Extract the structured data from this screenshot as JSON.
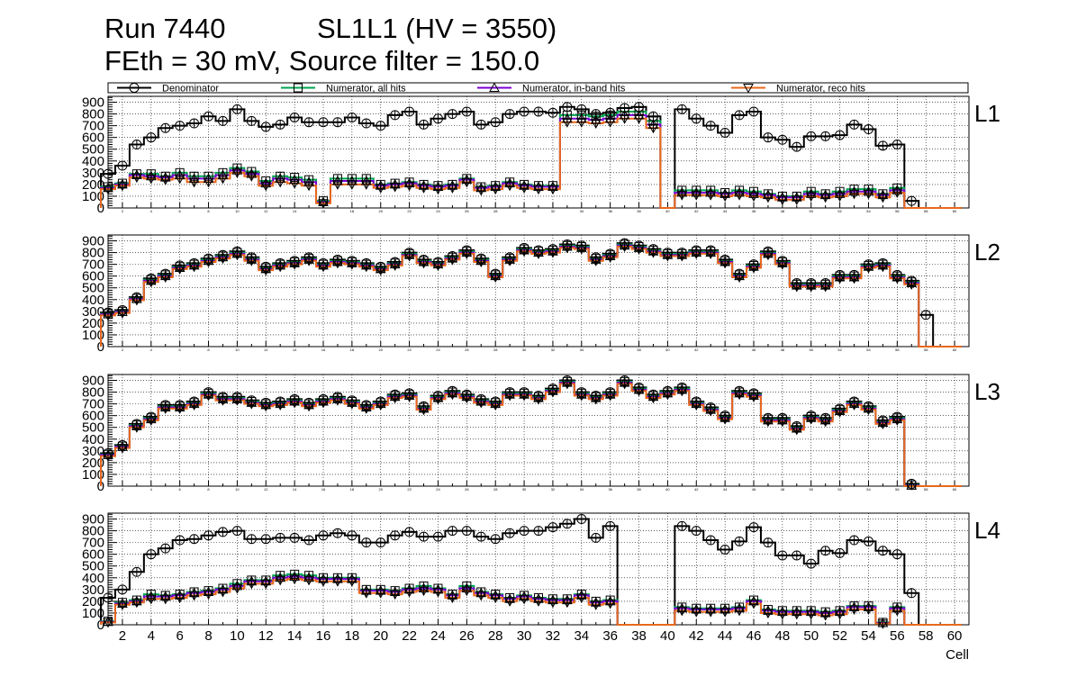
{
  "header": {
    "run": "Run 7440",
    "chamber": "SL1L1 (HV = 3550)",
    "settings": "FEth = 30 mV, Source filter = 150.0"
  },
  "chart_data": {
    "type": "line",
    "style": "step-histogram",
    "xlabel": "Cell",
    "xlim": [
      1,
      61
    ],
    "ylim": [
      0,
      950
    ],
    "x_ticks": [
      2,
      4,
      6,
      8,
      10,
      12,
      14,
      16,
      18,
      20,
      22,
      24,
      26,
      28,
      30,
      32,
      34,
      36,
      38,
      40,
      42,
      44,
      46,
      48,
      50,
      52,
      54,
      56,
      58,
      60
    ],
    "y_ticks": [
      0,
      100,
      200,
      300,
      400,
      500,
      600,
      700,
      800,
      900
    ],
    "legend": [
      {
        "name": "Denominator",
        "color": "#000000",
        "marker": "circle"
      },
      {
        "name": "Numerator, all hits",
        "color": "#00a651",
        "marker": "square"
      },
      {
        "name": "Numerator, in-band hits",
        "color": "#7b00d4",
        "marker": "triangle-up"
      },
      {
        "name": "Numerator, reco hits",
        "color": "#e8691c",
        "marker": "triangle-down"
      }
    ],
    "layers": [
      {
        "name": "L1",
        "x": [
          1,
          2,
          3,
          4,
          5,
          6,
          7,
          8,
          9,
          10,
          11,
          12,
          13,
          14,
          15,
          16,
          17,
          18,
          19,
          20,
          21,
          22,
          23,
          24,
          25,
          26,
          27,
          28,
          29,
          30,
          31,
          32,
          33,
          34,
          35,
          36,
          37,
          38,
          39,
          40,
          41,
          42,
          43,
          44,
          45,
          46,
          47,
          48,
          49,
          50,
          51,
          52,
          53,
          54,
          55,
          56,
          57,
          58,
          59,
          60
        ],
        "denominator": [
          290,
          360,
          540,
          600,
          680,
          700,
          720,
          780,
          740,
          840,
          740,
          690,
          710,
          770,
          730,
          730,
          730,
          770,
          720,
          700,
          790,
          820,
          710,
          760,
          800,
          820,
          710,
          730,
          800,
          820,
          820,
          810,
          860,
          840,
          800,
          810,
          850,
          860,
          780,
          0,
          840,
          760,
          700,
          640,
          790,
          820,
          600,
          580,
          520,
          610,
          610,
          620,
          710,
          670,
          530,
          540,
          60,
          0,
          0,
          0
        ],
        "all_hits": [
          180,
          210,
          290,
          290,
          270,
          300,
          270,
          270,
          300,
          340,
          310,
          230,
          270,
          260,
          240,
          60,
          250,
          250,
          250,
          200,
          210,
          220,
          200,
          190,
          200,
          250,
          180,
          190,
          220,
          200,
          190,
          190,
          790,
          790,
          780,
          790,
          820,
          820,
          740,
          0,
          150,
          150,
          150,
          130,
          150,
          140,
          120,
          100,
          100,
          140,
          120,
          140,
          160,
          160,
          120,
          170,
          0,
          0,
          0,
          0
        ],
        "inband_hits": [
          170,
          200,
          280,
          270,
          260,
          280,
          250,
          250,
          280,
          320,
          290,
          210,
          250,
          240,
          220,
          50,
          230,
          230,
          230,
          190,
          200,
          210,
          190,
          180,
          190,
          240,
          170,
          180,
          210,
          190,
          180,
          180,
          760,
          760,
          750,
          760,
          790,
          790,
          710,
          0,
          130,
          130,
          130,
          120,
          130,
          120,
          110,
          90,
          90,
          120,
          110,
          120,
          140,
          140,
          110,
          150,
          0,
          0,
          0,
          0
        ],
        "reco_hits": [
          160,
          190,
          260,
          250,
          240,
          250,
          220,
          220,
          250,
          300,
          270,
          190,
          220,
          210,
          190,
          40,
          200,
          200,
          200,
          170,
          180,
          190,
          170,
          160,
          170,
          220,
          150,
          160,
          190,
          170,
          160,
          160,
          730,
          730,
          720,
          730,
          760,
          760,
          680,
          0,
          110,
          110,
          110,
          100,
          110,
          100,
          90,
          70,
          70,
          100,
          90,
          100,
          120,
          120,
          90,
          130,
          0,
          0,
          0,
          0
        ]
      },
      {
        "name": "L2",
        "x": [
          1,
          2,
          3,
          4,
          5,
          6,
          7,
          8,
          9,
          10,
          11,
          12,
          13,
          14,
          15,
          16,
          17,
          18,
          19,
          20,
          21,
          22,
          23,
          24,
          25,
          26,
          27,
          28,
          29,
          30,
          31,
          32,
          33,
          34,
          35,
          36,
          37,
          38,
          39,
          40,
          41,
          42,
          43,
          44,
          45,
          46,
          47,
          48,
          49,
          50,
          51,
          52,
          53,
          54,
          55,
          56,
          57,
          58,
          59,
          60
        ],
        "denominator": [
          290,
          310,
          420,
          580,
          620,
          690,
          710,
          750,
          780,
          810,
          760,
          680,
          710,
          730,
          760,
          710,
          740,
          730,
          710,
          680,
          720,
          800,
          740,
          720,
          770,
          820,
          750,
          620,
          760,
          840,
          820,
          830,
          870,
          860,
          760,
          790,
          880,
          860,
          830,
          800,
          800,
          820,
          820,
          740,
          620,
          700,
          810,
          730,
          540,
          540,
          540,
          610,
          610,
          700,
          710,
          610,
          560,
          270,
          0,
          0
        ],
        "all_hits": [
          280,
          300,
          410,
          570,
          610,
          680,
          700,
          740,
          770,
          800,
          750,
          670,
          700,
          720,
          750,
          700,
          730,
          720,
          700,
          670,
          710,
          790,
          730,
          710,
          760,
          810,
          740,
          610,
          750,
          830,
          810,
          820,
          860,
          850,
          750,
          780,
          870,
          850,
          820,
          790,
          790,
          810,
          810,
          730,
          610,
          690,
          800,
          720,
          530,
          530,
          530,
          600,
          600,
          690,
          700,
          600,
          550,
          0,
          0,
          0
        ],
        "inband_hits": [
          275,
          295,
          405,
          560,
          600,
          670,
          690,
          730,
          760,
          790,
          740,
          660,
          690,
          710,
          740,
          690,
          720,
          710,
          690,
          660,
          700,
          780,
          720,
          700,
          750,
          800,
          730,
          600,
          740,
          820,
          800,
          810,
          850,
          840,
          740,
          770,
          860,
          840,
          810,
          780,
          780,
          800,
          800,
          720,
          600,
          680,
          790,
          710,
          520,
          520,
          520,
          590,
          590,
          680,
          690,
          590,
          540,
          0,
          0,
          0
        ],
        "reco_hits": [
          265,
          285,
          395,
          550,
          590,
          660,
          680,
          720,
          750,
          780,
          730,
          650,
          680,
          700,
          730,
          680,
          710,
          700,
          680,
          650,
          690,
          770,
          710,
          690,
          740,
          790,
          720,
          590,
          730,
          810,
          790,
          800,
          840,
          830,
          730,
          760,
          850,
          830,
          800,
          770,
          770,
          790,
          790,
          710,
          590,
          670,
          780,
          700,
          510,
          510,
          510,
          580,
          580,
          670,
          680,
          580,
          530,
          0,
          0,
          0
        ]
      },
      {
        "name": "L3",
        "x": [
          1,
          2,
          3,
          4,
          5,
          6,
          7,
          8,
          9,
          10,
          11,
          12,
          13,
          14,
          15,
          16,
          17,
          18,
          19,
          20,
          21,
          22,
          23,
          24,
          25,
          26,
          27,
          28,
          29,
          30,
          31,
          32,
          33,
          34,
          35,
          36,
          37,
          38,
          39,
          40,
          41,
          42,
          43,
          44,
          45,
          46,
          47,
          48,
          49,
          50,
          51,
          52,
          53,
          54,
          55,
          56,
          57,
          58,
          59,
          60
        ],
        "denominator": [
          280,
          350,
          530,
          590,
          690,
          690,
          720,
          800,
          760,
          760,
          730,
          710,
          720,
          740,
          710,
          740,
          760,
          730,
          690,
          720,
          780,
          790,
          680,
          770,
          810,
          780,
          740,
          720,
          800,
          800,
          770,
          830,
          900,
          800,
          770,
          800,
          900,
          840,
          780,
          810,
          840,
          720,
          670,
          600,
          810,
          790,
          580,
          580,
          510,
          600,
          580,
          660,
          720,
          680,
          560,
          590,
          20,
          0,
          0,
          0
        ],
        "all_hits": [
          270,
          340,
          520,
          580,
          680,
          680,
          710,
          790,
          750,
          750,
          720,
          700,
          710,
          730,
          700,
          730,
          750,
          720,
          680,
          710,
          770,
          780,
          670,
          760,
          800,
          770,
          730,
          710,
          790,
          790,
          760,
          820,
          890,
          790,
          760,
          790,
          890,
          830,
          770,
          800,
          830,
          710,
          660,
          590,
          800,
          780,
          570,
          570,
          500,
          590,
          570,
          650,
          710,
          670,
          550,
          580,
          10,
          0,
          0,
          0
        ],
        "inband_hits": [
          265,
          335,
          510,
          570,
          670,
          670,
          700,
          780,
          740,
          740,
          710,
          690,
          700,
          720,
          690,
          720,
          740,
          710,
          670,
          700,
          760,
          770,
          660,
          750,
          790,
          760,
          720,
          700,
          780,
          780,
          750,
          810,
          880,
          780,
          750,
          780,
          880,
          820,
          760,
          790,
          820,
          700,
          650,
          580,
          790,
          770,
          560,
          560,
          490,
          580,
          560,
          640,
          700,
          660,
          540,
          570,
          5,
          0,
          0,
          0
        ],
        "reco_hits": [
          255,
          325,
          500,
          560,
          660,
          660,
          690,
          770,
          730,
          730,
          700,
          680,
          690,
          710,
          680,
          710,
          730,
          700,
          660,
          690,
          750,
          760,
          650,
          740,
          780,
          750,
          710,
          690,
          770,
          770,
          740,
          800,
          870,
          770,
          740,
          770,
          870,
          810,
          750,
          780,
          810,
          690,
          640,
          570,
          780,
          760,
          550,
          550,
          480,
          570,
          550,
          630,
          690,
          650,
          530,
          560,
          0,
          0,
          0,
          0
        ]
      },
      {
        "name": "L4",
        "x": [
          1,
          2,
          3,
          4,
          5,
          6,
          7,
          8,
          9,
          10,
          11,
          12,
          13,
          14,
          15,
          16,
          17,
          18,
          19,
          20,
          21,
          22,
          23,
          24,
          25,
          26,
          27,
          28,
          29,
          30,
          31,
          32,
          33,
          34,
          35,
          36,
          37,
          38,
          39,
          40,
          41,
          42,
          43,
          44,
          45,
          46,
          47,
          48,
          49,
          50,
          51,
          52,
          53,
          54,
          55,
          56,
          57,
          58,
          59,
          60
        ],
        "denominator": [
          230,
          300,
          450,
          600,
          650,
          720,
          730,
          760,
          790,
          800,
          730,
          730,
          740,
          740,
          720,
          760,
          780,
          760,
          700,
          700,
          760,
          790,
          750,
          750,
          800,
          800,
          750,
          730,
          780,
          800,
          800,
          830,
          860,
          900,
          740,
          840,
          0,
          0,
          0,
          0,
          840,
          800,
          720,
          640,
          710,
          830,
          700,
          590,
          590,
          520,
          630,
          610,
          720,
          710,
          630,
          600,
          270,
          0,
          0,
          0
        ],
        "all_hits": [
          30,
          190,
          210,
          260,
          250,
          260,
          280,
          290,
          310,
          350,
          380,
          380,
          420,
          430,
          420,
          400,
          400,
          400,
          300,
          300,
          290,
          310,
          330,
          310,
          260,
          330,
          280,
          260,
          230,
          250,
          230,
          220,
          220,
          260,
          200,
          210,
          0,
          0,
          0,
          0,
          150,
          140,
          140,
          140,
          150,
          210,
          130,
          120,
          120,
          120,
          110,
          120,
          160,
          160,
          20,
          150,
          0,
          0,
          0,
          0
        ],
        "inband_hits": [
          25,
          180,
          200,
          240,
          240,
          250,
          270,
          280,
          300,
          330,
          370,
          370,
          400,
          410,
          400,
          390,
          390,
          390,
          290,
          290,
          280,
          300,
          310,
          300,
          250,
          310,
          270,
          250,
          220,
          240,
          220,
          210,
          210,
          250,
          190,
          200,
          0,
          0,
          0,
          0,
          140,
          130,
          130,
          130,
          140,
          200,
          120,
          110,
          110,
          110,
          100,
          110,
          150,
          150,
          15,
          140,
          0,
          0,
          0,
          0
        ],
        "reco_hits": [
          20,
          170,
          190,
          220,
          220,
          230,
          250,
          260,
          280,
          310,
          350,
          350,
          380,
          390,
          380,
          370,
          370,
          370,
          270,
          270,
          260,
          280,
          290,
          280,
          230,
          290,
          250,
          230,
          200,
          220,
          200,
          190,
          190,
          230,
          170,
          180,
          0,
          0,
          0,
          0,
          120,
          110,
          110,
          110,
          120,
          180,
          100,
          90,
          90,
          90,
          80,
          90,
          130,
          130,
          10,
          120,
          0,
          0,
          0,
          0
        ]
      }
    ]
  }
}
